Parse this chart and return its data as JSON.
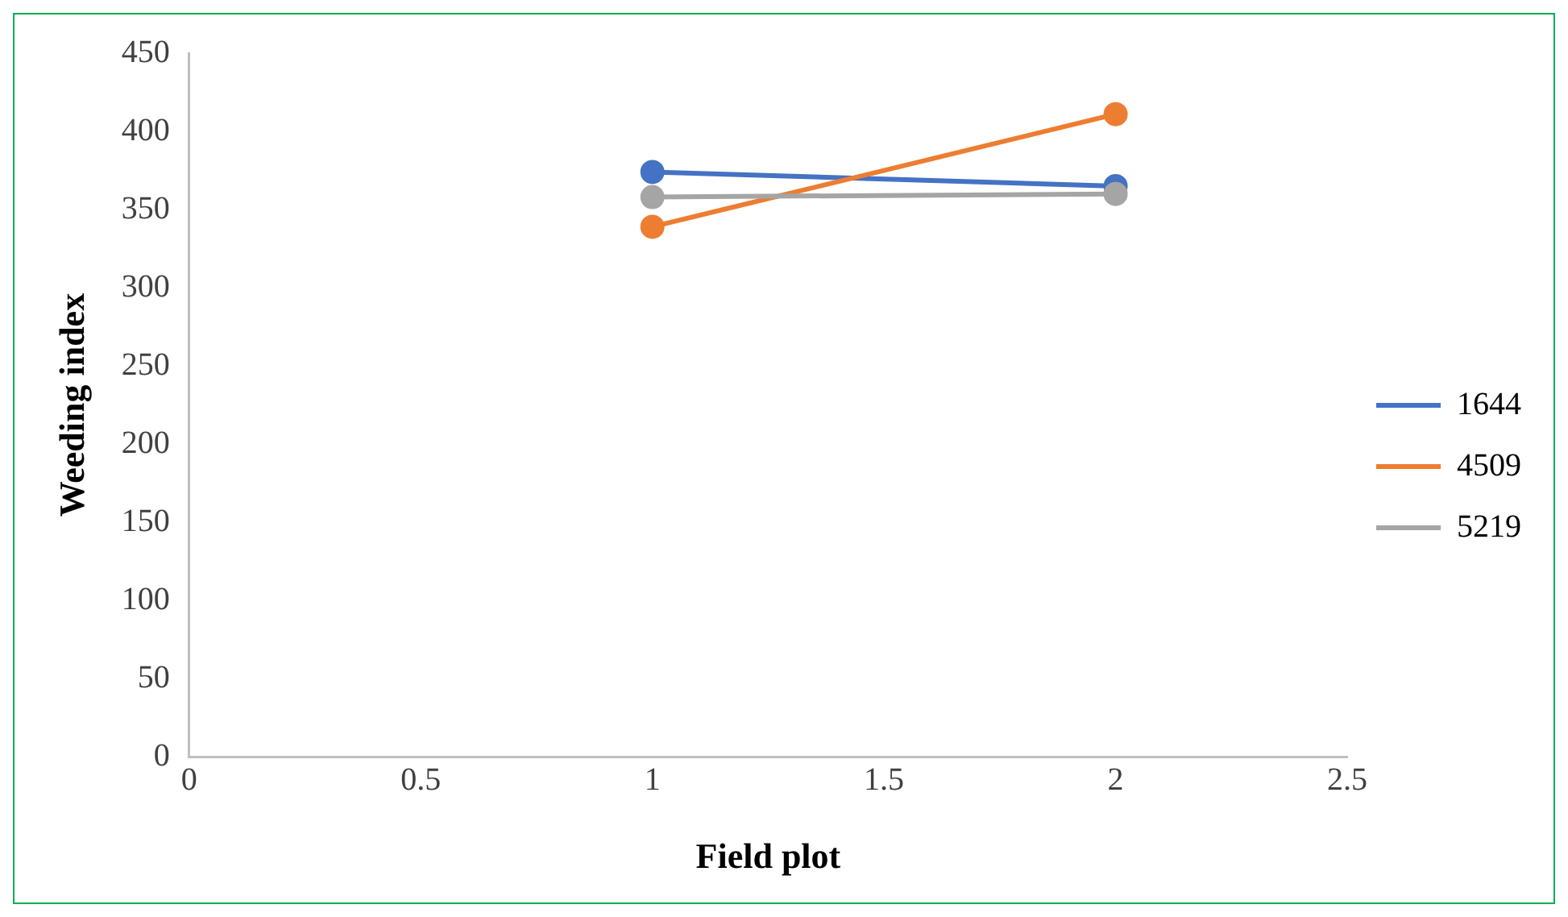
{
  "chart_data": {
    "type": "line",
    "xlabel": "Field plot",
    "ylabel": "Weeding index",
    "x": [
      1,
      2
    ],
    "series": [
      {
        "name": "1644",
        "color": "#4472c4",
        "values": [
          374,
          365
        ]
      },
      {
        "name": "4509",
        "color": "#ed7d31",
        "values": [
          339,
          411
        ]
      },
      {
        "name": "5219",
        "color": "#a5a5a5",
        "values": [
          358,
          360
        ]
      }
    ],
    "xlim": [
      0,
      2.5
    ],
    "xticks": [
      0,
      0.5,
      1,
      1.5,
      2,
      2.5
    ],
    "ylim": [
      0,
      450
    ],
    "yticks": [
      0,
      50,
      100,
      150,
      200,
      250,
      300,
      350,
      400,
      450
    ],
    "grid": false,
    "legend": "right",
    "marker": "circle",
    "line_style": "solid"
  }
}
